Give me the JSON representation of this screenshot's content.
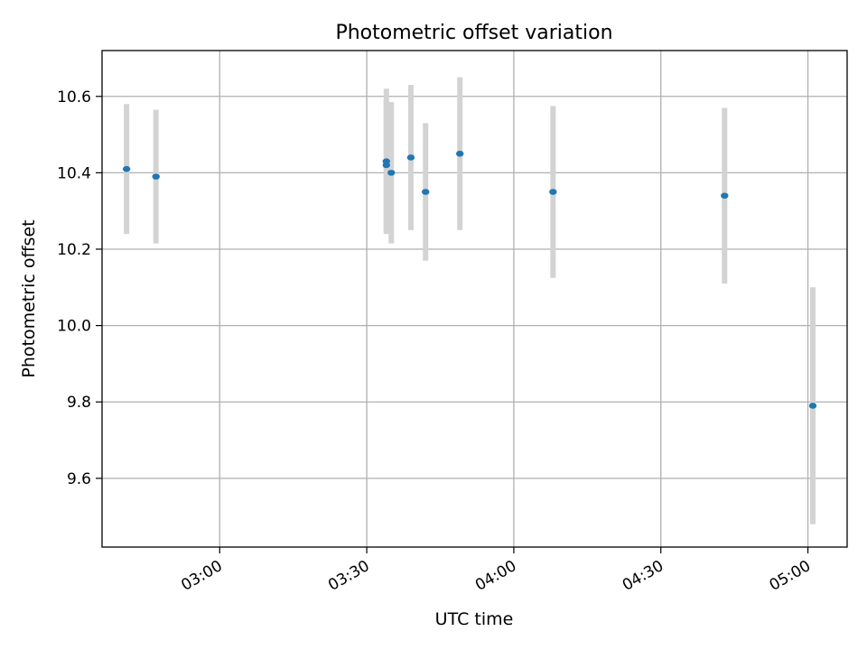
{
  "chart_data": {
    "type": "scatter",
    "title": "Photometric offset variation",
    "xlabel": "UTC time",
    "ylabel": "Photometric offset",
    "x_ticks": [
      "03:00",
      "03:30",
      "04:00",
      "04:30",
      "05:00"
    ],
    "y_ticks": [
      "9.6",
      "9.8",
      "10.0",
      "10.2",
      "10.4",
      "10.6"
    ],
    "xlim": [
      "02:36",
      "05:08"
    ],
    "ylim": [
      9.42,
      10.72
    ],
    "grid": true,
    "marker_color": "#1f77b4",
    "errorbar_color": "#d3d3d3",
    "points": [
      {
        "x": "02:41",
        "y": 10.41,
        "err": 0.17
      },
      {
        "x": "02:47",
        "y": 10.39,
        "err": 0.175
      },
      {
        "x": "03:34",
        "y": 10.42,
        "err": 0.17
      },
      {
        "x": "03:34",
        "y": 10.43,
        "err": 0.19
      },
      {
        "x": "03:35",
        "y": 10.4,
        "err": 0.185
      },
      {
        "x": "03:39",
        "y": 10.44,
        "err": 0.19
      },
      {
        "x": "03:42",
        "y": 10.35,
        "err": 0.18
      },
      {
        "x": "03:49",
        "y": 10.45,
        "err": 0.2
      },
      {
        "x": "04:08",
        "y": 10.35,
        "err": 0.225
      },
      {
        "x": "04:43",
        "y": 10.34,
        "err": 0.23
      },
      {
        "x": "05:01",
        "y": 9.79,
        "err": 0.31
      }
    ]
  }
}
